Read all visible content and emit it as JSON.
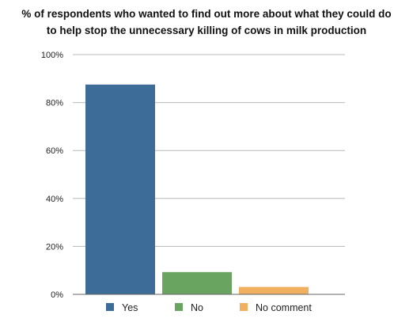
{
  "chart_data": {
    "type": "bar",
    "title_lines": [
      "% of respondents who wanted to find out more about what they could do",
      "to help stop the unnecessary killing of cows in milk production"
    ],
    "categories": [
      "Yes",
      "No",
      "No comment"
    ],
    "values": [
      87.5,
      9.3,
      3.1
    ],
    "colors": [
      "#3d6c98",
      "#6aa461",
      "#f0b060"
    ],
    "yticks": [
      "0%",
      "20%",
      "40%",
      "60%",
      "80%",
      "100%"
    ],
    "ylim": [
      0,
      100
    ],
    "grid": true,
    "legend": "bottom"
  }
}
